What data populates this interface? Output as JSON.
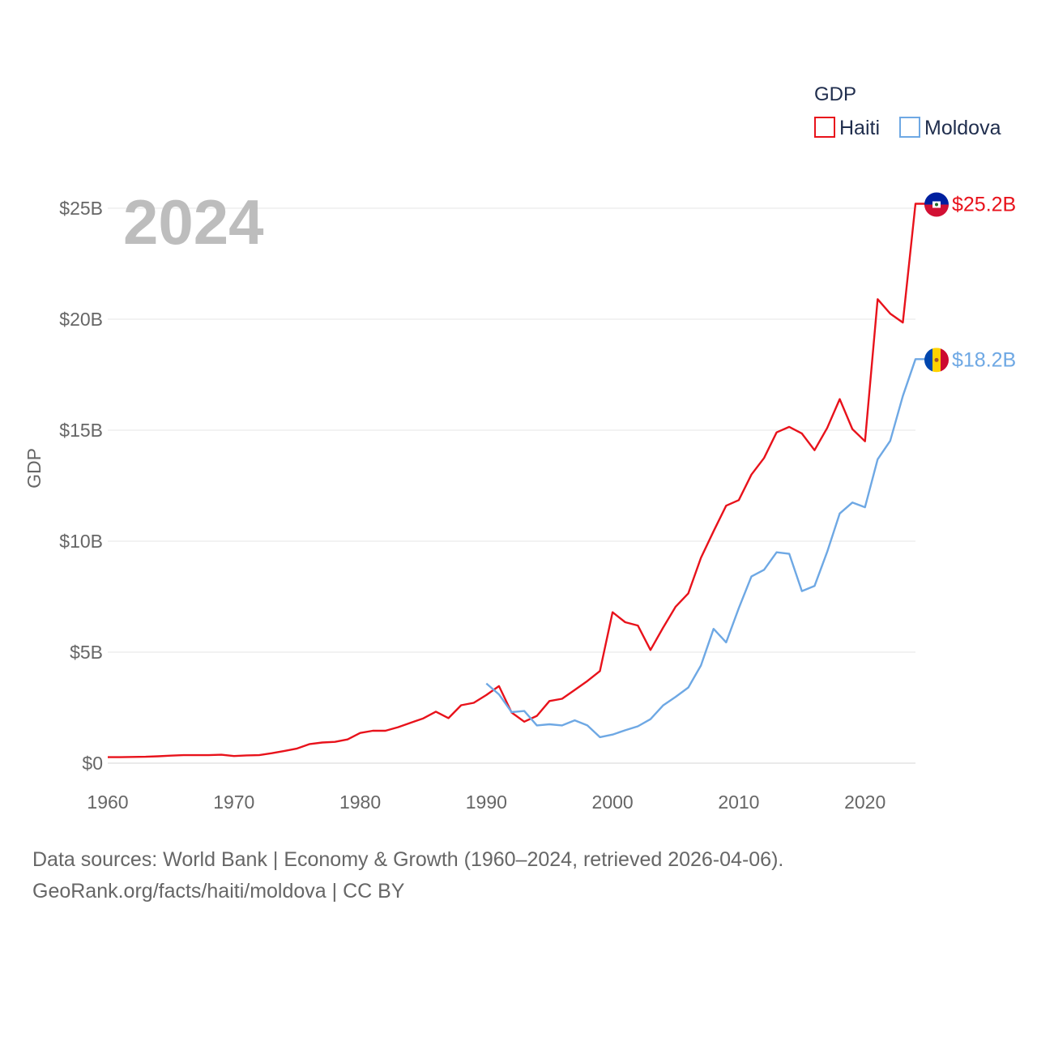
{
  "chart_data": {
    "type": "line",
    "year_label": "2024",
    "ylabel": "GDP",
    "ylim": [
      0,
      25
    ],
    "y_ticks": [
      {
        "value": 0,
        "label": "$0"
      },
      {
        "value": 5,
        "label": "$5B"
      },
      {
        "value": 10,
        "label": "$10B"
      },
      {
        "value": 15,
        "label": "$15B"
      },
      {
        "value": 20,
        "label": "$20B"
      },
      {
        "value": 25,
        "label": "$25B"
      }
    ],
    "xlim": [
      1960,
      2024
    ],
    "x_ticks": [
      "1960",
      "1970",
      "1980",
      "1990",
      "2000",
      "2010",
      "2020"
    ],
    "legend": {
      "title": "GDP",
      "position": "top-right"
    },
    "series": [
      {
        "name": "Haiti",
        "color": "#e8121b",
        "end_label": "$25.2B",
        "flag": "haiti-flag",
        "x": [
          1960,
          1961,
          1962,
          1963,
          1964,
          1965,
          1966,
          1967,
          1968,
          1969,
          1970,
          1971,
          1972,
          1973,
          1974,
          1975,
          1976,
          1977,
          1978,
          1979,
          1980,
          1981,
          1982,
          1983,
          1984,
          1985,
          1986,
          1987,
          1988,
          1989,
          1990,
          1991,
          1992,
          1993,
          1994,
          1995,
          1996,
          1997,
          1998,
          1999,
          2000,
          2001,
          2002,
          2003,
          2004,
          2005,
          2006,
          2007,
          2008,
          2009,
          2010,
          2011,
          2012,
          2013,
          2014,
          2015,
          2016,
          2017,
          2018,
          2019,
          2020,
          2021,
          2022,
          2023,
          2024
        ],
        "values": [
          0.27,
          0.27,
          0.28,
          0.29,
          0.31,
          0.34,
          0.36,
          0.36,
          0.36,
          0.38,
          0.32,
          0.35,
          0.36,
          0.45,
          0.55,
          0.66,
          0.86,
          0.93,
          0.96,
          1.07,
          1.36,
          1.46,
          1.46,
          1.62,
          1.82,
          2.02,
          2.32,
          2.03,
          2.61,
          2.72,
          3.07,
          3.47,
          2.28,
          1.87,
          2.13,
          2.8,
          2.9,
          3.3,
          3.7,
          4.15,
          6.8,
          6.35,
          6.2,
          5.1,
          6.1,
          7.05,
          7.65,
          9.25,
          10.45,
          11.6,
          11.85,
          13.0,
          13.75,
          14.9,
          15.15,
          14.85,
          14.1,
          15.1,
          16.4,
          15.05,
          14.5,
          20.9,
          20.25,
          19.85,
          25.2
        ]
      },
      {
        "name": "Moldova",
        "color": "#6ea8e4",
        "end_label": "$18.2B",
        "flag": "moldova-flag",
        "x": [
          1990,
          1991,
          1992,
          1993,
          1994,
          1995,
          1996,
          1997,
          1998,
          1999,
          2000,
          2001,
          2002,
          2003,
          2004,
          2005,
          2006,
          2007,
          2008,
          2009,
          2010,
          2011,
          2012,
          2013,
          2014,
          2015,
          2016,
          2017,
          2018,
          2019,
          2020,
          2021,
          2022,
          2023,
          2024
        ],
        "values": [
          3.59,
          3.1,
          2.3,
          2.35,
          1.7,
          1.75,
          1.7,
          1.93,
          1.7,
          1.17,
          1.29,
          1.48,
          1.66,
          1.98,
          2.6,
          2.99,
          3.41,
          4.4,
          6.05,
          5.44,
          6.98,
          8.41,
          8.71,
          9.5,
          9.43,
          7.75,
          7.98,
          9.52,
          11.25,
          11.74,
          11.53,
          13.69,
          14.52,
          16.54,
          18.2
        ]
      }
    ]
  },
  "footer": {
    "line1": "Data sources: World Bank | Economy & Growth (1960–2024, retrieved 2026-04-06).",
    "line2": "GeoRank.org/facts/haiti/moldova | CC BY"
  }
}
